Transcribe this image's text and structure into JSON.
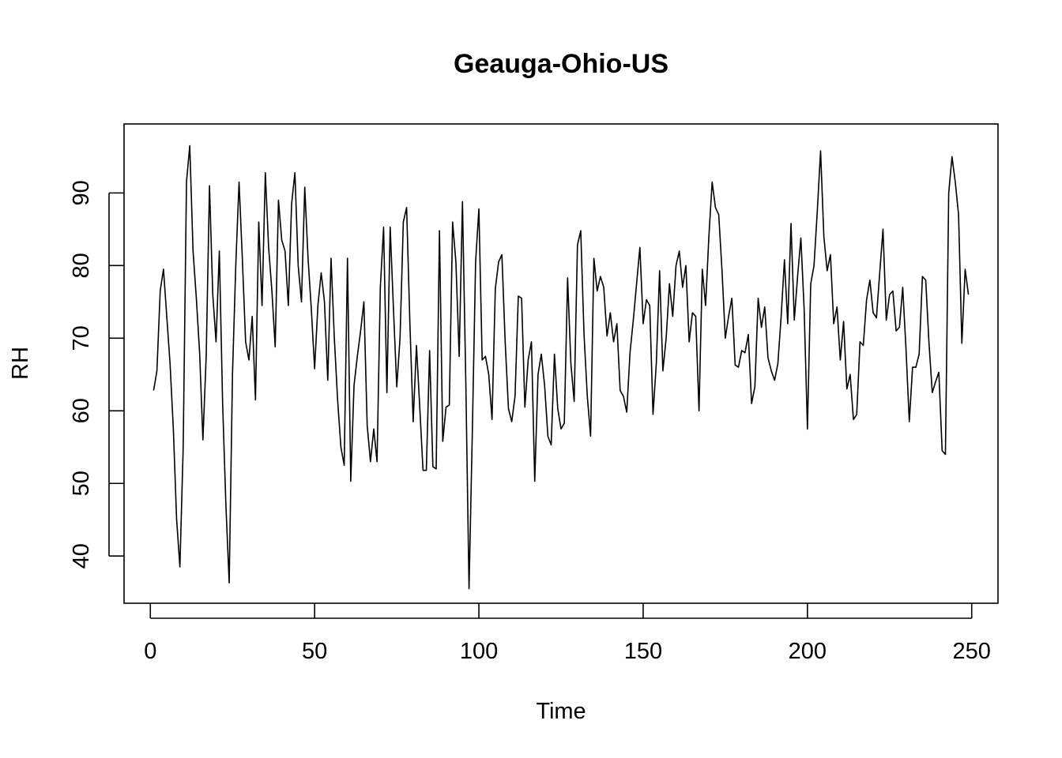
{
  "chart_data": {
    "type": "line",
    "title": "Geauga-Ohio-US",
    "xlabel": "Time",
    "ylabel": "RH",
    "xlim": [
      -8,
      258
    ],
    "ylim": [
      33.5,
      99.5
    ],
    "x_ticks": [
      0,
      50,
      100,
      150,
      200,
      250
    ],
    "y_ticks": [
      40,
      50,
      60,
      70,
      80,
      90
    ],
    "x_start": 1,
    "series": [
      {
        "values": [
          62.8,
          65.5,
          76.5,
          79.5,
          73.0,
          66.5,
          57.5,
          45.0,
          38.5,
          55.0,
          91.5,
          96.5,
          82.0,
          75.5,
          68.0,
          56.0,
          67.5,
          91.0,
          76.0,
          69.5,
          82.0,
          61.0,
          47.0,
          36.3,
          65.0,
          80.0,
          91.5,
          81.0,
          69.5,
          67.0,
          73.0,
          61.5,
          86.0,
          74.5,
          92.8,
          82.5,
          76.5,
          68.8,
          89.0,
          83.5,
          82.0,
          74.5,
          88.5,
          92.8,
          80.0,
          75.0,
          90.8,
          81.0,
          74.0,
          65.8,
          74.5,
          79.0,
          75.0,
          64.2,
          81.0,
          70.0,
          61.5,
          55.0,
          52.5,
          81.0,
          50.3,
          63.5,
          67.5,
          71.0,
          75.0,
          58.0,
          53.0,
          57.5,
          53.0,
          77.0,
          85.3,
          62.5,
          85.3,
          74.0,
          63.3,
          70.0,
          86.0,
          88.0,
          72.0,
          58.5,
          69.0,
          60.5,
          51.8,
          51.8,
          68.3,
          52.3,
          52.0,
          84.8,
          55.8,
          60.5,
          60.8,
          86.0,
          80.5,
          67.5,
          88.8,
          64.5,
          35.5,
          57.0,
          80.5,
          87.8,
          67.0,
          67.5,
          65.0,
          58.8,
          76.8,
          80.5,
          81.5,
          69.5,
          60.3,
          58.5,
          62.0,
          75.8,
          75.5,
          60.5,
          67.0,
          69.5,
          50.3,
          65.0,
          67.8,
          63.5,
          56.5,
          55.3,
          67.8,
          60.3,
          57.5,
          58.3,
          78.3,
          66.5,
          61.3,
          82.8,
          84.8,
          70.5,
          62.0,
          56.5,
          81.0,
          76.5,
          78.5,
          77.0,
          70.3,
          73.5,
          69.5,
          72.0,
          62.8,
          62.0,
          59.8,
          68.0,
          72.5,
          77.5,
          82.5,
          72.0,
          75.3,
          74.5,
          59.5,
          66.5,
          79.3,
          65.5,
          70.0,
          77.5,
          73.0,
          80.0,
          82.0,
          77.0,
          80.0,
          69.5,
          73.5,
          73.0,
          60.0,
          79.5,
          74.5,
          84.0,
          91.5,
          88.0,
          87.0,
          79.3,
          70.0,
          73.0,
          75.5,
          66.3,
          66.0,
          68.3,
          68.0,
          70.5,
          61.0,
          63.3,
          75.5,
          71.5,
          74.3,
          67.3,
          65.5,
          64.2,
          66.5,
          73.0,
          80.8,
          72.0,
          85.8,
          72.5,
          78.5,
          83.8,
          74.0,
          57.5,
          77.5,
          80.0,
          87.5,
          95.8,
          84.0,
          79.3,
          81.5,
          72.0,
          74.3,
          67.0,
          72.3,
          63.0,
          65.0,
          58.8,
          59.5,
          69.5,
          69.0,
          75.3,
          78.0,
          73.5,
          72.8,
          79.0,
          85.0,
          72.5,
          76.0,
          76.5,
          71.0,
          71.5,
          77.0,
          68.5,
          58.5,
          66.0,
          66.0,
          67.8,
          78.5,
          78.0,
          69.3,
          62.5,
          64.0,
          65.3,
          54.5,
          54.0,
          90.0,
          95.0,
          91.5,
          87.0,
          69.3,
          79.5,
          76.0
        ]
      }
    ]
  }
}
